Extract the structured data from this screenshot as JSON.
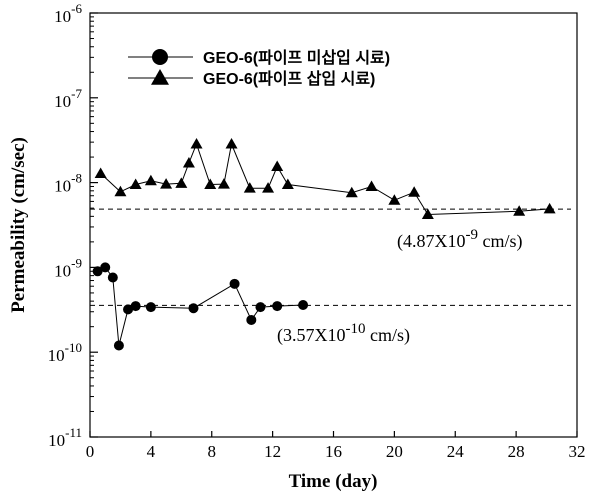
{
  "chart_data": {
    "type": "scatter",
    "xlabel": "Time (day)",
    "ylabel": "Permeability (cm/sec)",
    "xlim": [
      0,
      32
    ],
    "ylim": [
      1e-11,
      1e-06
    ],
    "yscale": "log",
    "x_ticks": [
      "0",
      "4",
      "8",
      "12",
      "16",
      "20",
      "24",
      "28",
      "32"
    ],
    "y_ticks": [
      {
        "base": "10",
        "exp": "-11"
      },
      {
        "base": "10",
        "exp": "-10"
      },
      {
        "base": "10",
        "exp": "-9"
      },
      {
        "base": "10",
        "exp": "-8"
      },
      {
        "base": "10",
        "exp": "-7"
      },
      {
        "base": "10",
        "exp": "-6"
      }
    ],
    "legend_position": "top-left",
    "series": [
      {
        "name": "GEO-6(파이프 미삽입 시료)",
        "marker": "circle",
        "x": [
          0.5,
          1.0,
          1.5,
          1.9,
          2.5,
          3.0,
          4.0,
          6.8,
          9.5,
          10.6,
          11.2,
          12.3,
          14.0
        ],
        "y": [
          9e-10,
          1e-09,
          7.6e-10,
          1.2e-10,
          3.2e-10,
          3.5e-10,
          3.4e-10,
          3.3e-10,
          6.4e-10,
          2.4e-10,
          3.4e-10,
          3.5e-10,
          3.6e-10
        ]
      },
      {
        "name": "GEO-6(파이프 삽입 시료)",
        "marker": "triangle",
        "x": [
          0.7,
          2.0,
          3.0,
          4.0,
          5.0,
          6.0,
          6.5,
          7.0,
          7.9,
          8.8,
          9.3,
          10.5,
          11.7,
          12.3,
          13.0,
          17.2,
          18.5,
          20.0,
          21.3,
          22.2,
          28.2,
          30.2
        ],
        "y": [
          1.28e-08,
          7.8e-09,
          9.5e-09,
          1.05e-08,
          9.6e-09,
          9.8e-09,
          1.7e-08,
          2.85e-08,
          9.5e-09,
          9.6e-09,
          2.85e-08,
          8.6e-09,
          8.6e-09,
          1.55e-08,
          9.5e-09,
          7.6e-09,
          9e-09,
          6.2e-09,
          7.7e-09,
          4.2e-09,
          4.6e-09,
          4.9e-09
        ]
      }
    ],
    "reference_lines": [
      {
        "y": 4.87e-09,
        "style": "dashed",
        "label_prefix": "(4.87X10",
        "label_exp": "-9",
        "label_suffix": " cm/s)"
      },
      {
        "y": 3.57e-10,
        "style": "dashed",
        "label_prefix": "(3.57X10",
        "label_exp": "-10",
        "label_suffix": " cm/s)"
      }
    ]
  }
}
